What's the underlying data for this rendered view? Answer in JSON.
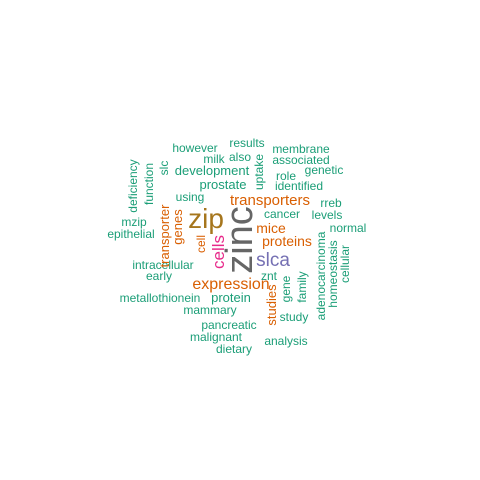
{
  "colors": {
    "teal": "#1b9e77",
    "orange": "#d95f02",
    "purple": "#7570b3",
    "magenta": "#e7298a",
    "olive": "#a6761d",
    "gray": "#666666"
  },
  "words": [
    {
      "text": "zinc",
      "color": "gray"
    },
    {
      "text": "zip",
      "color": "olive"
    },
    {
      "text": "cells",
      "color": "magenta"
    },
    {
      "text": "slca",
      "color": "purple"
    },
    {
      "text": "expression",
      "color": "orange"
    },
    {
      "text": "transporters",
      "color": "orange"
    },
    {
      "text": "proteins",
      "color": "orange"
    },
    {
      "text": "mice",
      "color": "orange"
    },
    {
      "text": "transporter",
      "color": "orange"
    },
    {
      "text": "genes",
      "color": "orange"
    },
    {
      "text": "studies",
      "color": "orange"
    },
    {
      "text": "cell",
      "color": "orange"
    },
    {
      "text": "results",
      "color": "teal"
    },
    {
      "text": "however",
      "color": "teal"
    },
    {
      "text": "membrane",
      "color": "teal"
    },
    {
      "text": "milk",
      "color": "teal"
    },
    {
      "text": "also",
      "color": "teal"
    },
    {
      "text": "associated",
      "color": "teal"
    },
    {
      "text": "development",
      "color": "teal"
    },
    {
      "text": "genetic",
      "color": "teal"
    },
    {
      "text": "role",
      "color": "teal"
    },
    {
      "text": "prostate",
      "color": "teal"
    },
    {
      "text": "identified",
      "color": "teal"
    },
    {
      "text": "using",
      "color": "teal"
    },
    {
      "text": "rreb",
      "color": "teal"
    },
    {
      "text": "cancer",
      "color": "teal"
    },
    {
      "text": "levels",
      "color": "teal"
    },
    {
      "text": "normal",
      "color": "teal"
    },
    {
      "text": "mzip",
      "color": "teal"
    },
    {
      "text": "epithelial",
      "color": "teal"
    },
    {
      "text": "intracellular",
      "color": "teal"
    },
    {
      "text": "early",
      "color": "teal"
    },
    {
      "text": "znt",
      "color": "teal"
    },
    {
      "text": "gene",
      "color": "teal"
    },
    {
      "text": "metallothionein",
      "color": "teal"
    },
    {
      "text": "protein",
      "color": "teal"
    },
    {
      "text": "mammary",
      "color": "teal"
    },
    {
      "text": "study",
      "color": "teal"
    },
    {
      "text": "pancreatic",
      "color": "teal"
    },
    {
      "text": "malignant",
      "color": "teal"
    },
    {
      "text": "analysis",
      "color": "teal"
    },
    {
      "text": "dietary",
      "color": "teal"
    },
    {
      "text": "deficiency",
      "color": "teal"
    },
    {
      "text": "function",
      "color": "teal"
    },
    {
      "text": "slc",
      "color": "teal"
    },
    {
      "text": "uptake",
      "color": "teal"
    },
    {
      "text": "family",
      "color": "teal"
    },
    {
      "text": "adenocarcinoma",
      "color": "teal"
    },
    {
      "text": "homeostasis",
      "color": "teal"
    },
    {
      "text": "cellular",
      "color": "teal"
    }
  ]
}
